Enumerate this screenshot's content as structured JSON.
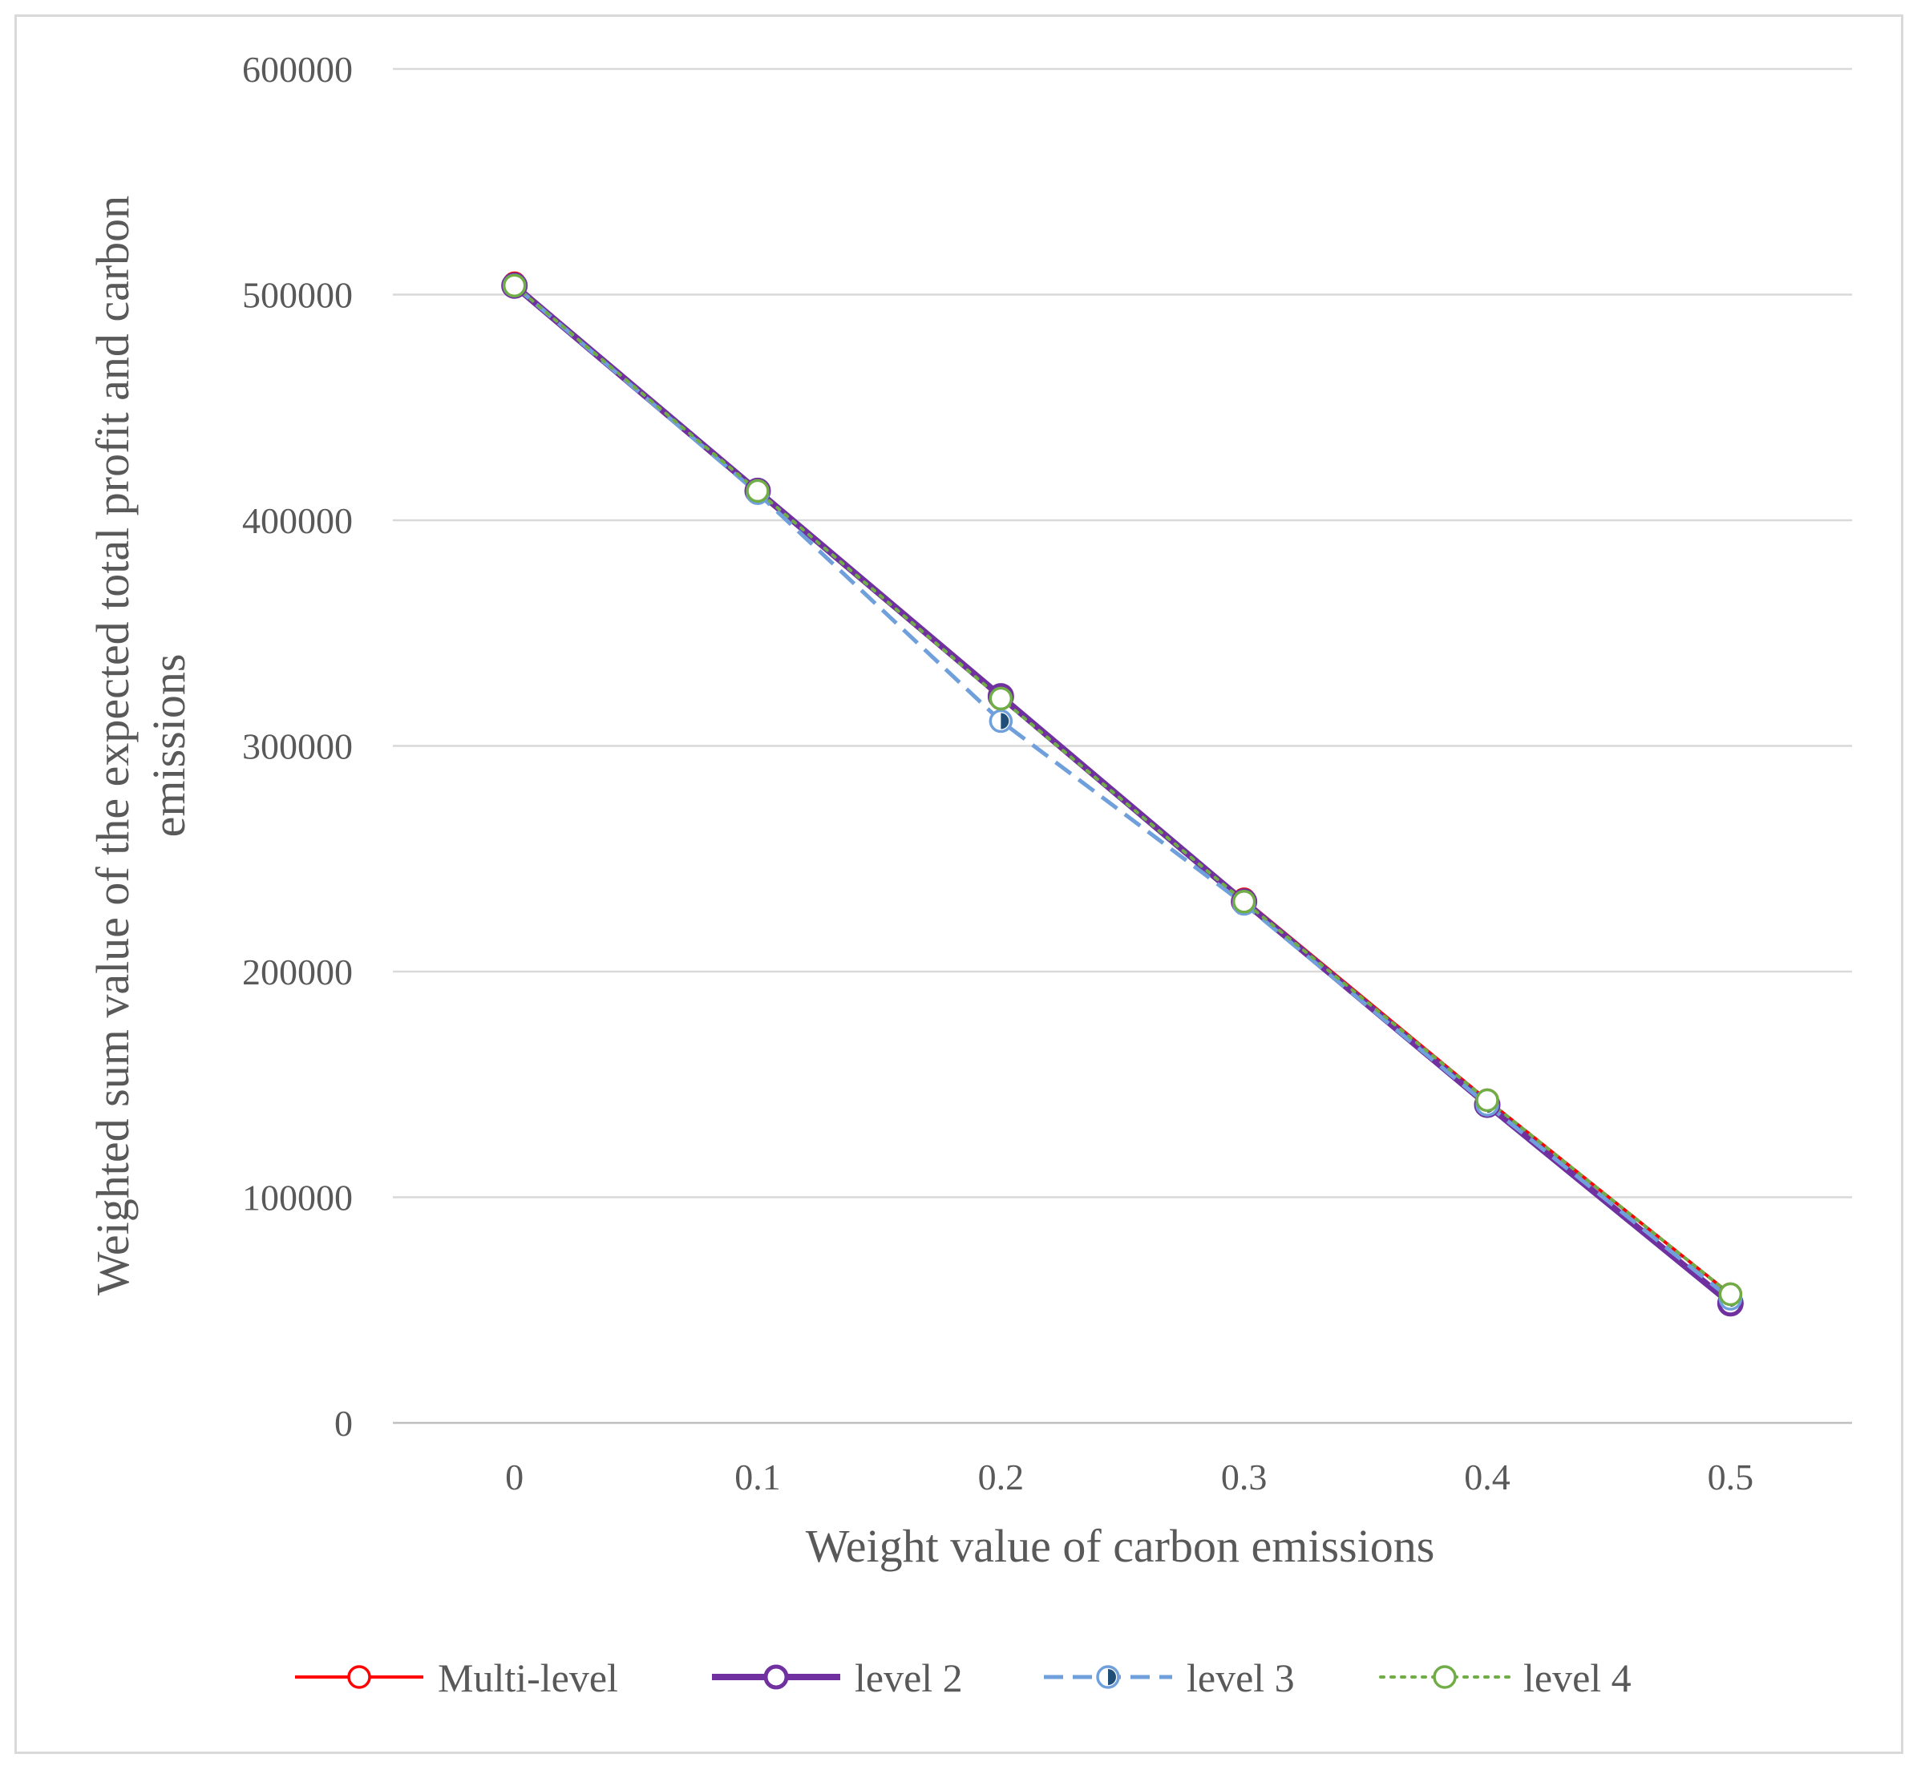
{
  "chart_data": {
    "type": "line",
    "x": [
      0,
      0.1,
      0.2,
      0.3,
      0.4,
      0.5
    ],
    "x_tick_labels": [
      "0",
      "0.1",
      "0.2",
      "0.3",
      "0.4",
      "0.5"
    ],
    "y_tick_labels": [
      "0",
      "100000",
      "200000",
      "300000",
      "400000",
      "500000",
      "600000"
    ],
    "ylim": [
      0,
      600000
    ],
    "xlabel": "Weight value of carbon emissions",
    "ylabel_line1": "Weighted sum value of the expected total profit and carbon",
    "ylabel_line2": "emissions",
    "grid": "horizontal",
    "legend_position": "bottom",
    "series": [
      {
        "name": "Multi-level",
        "values": [
          505000,
          413000,
          321000,
          232000,
          143000,
          57000
        ],
        "color": "#ff0000",
        "line_style": "solid",
        "marker": "hollow-circle"
      },
      {
        "name": "level 2",
        "values": [
          504000,
          413000,
          322000,
          231000,
          141000,
          53000
        ],
        "color": "#7030a0",
        "line_style": "solid-thick",
        "marker": "hollow-circle"
      },
      {
        "name": "level 3",
        "values": [
          504000,
          412000,
          311000,
          230000,
          141000,
          55000
        ],
        "color": "#6fa0dc",
        "line_style": "dashed",
        "marker": "half-filled-circle",
        "marker_fill": "#1f4e79"
      },
      {
        "name": "level 4",
        "values": [
          504000,
          413000,
          321000,
          231000,
          143000,
          57000
        ],
        "color": "#70ad47",
        "line_style": "dotted",
        "marker": "hollow-circle"
      }
    ]
  }
}
